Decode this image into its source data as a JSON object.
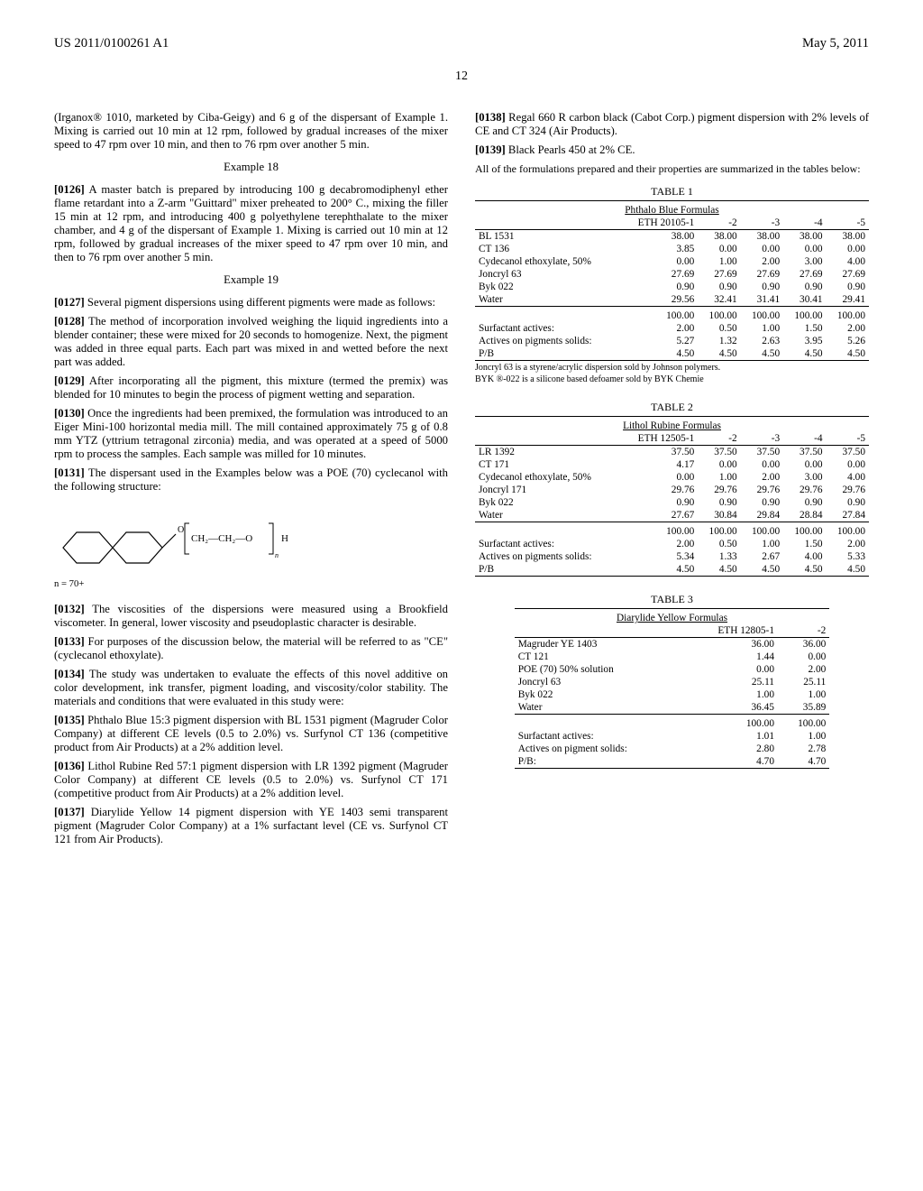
{
  "header": {
    "patent_no": "US 2011/0100261 A1",
    "date": "May 5, 2011",
    "page": "12"
  },
  "left_col": {
    "p1": "(Irganox® 1010, marketed by Ciba-Geigy) and 6 g of the dispersant of Example 1. Mixing is carried out 10 min at 12 rpm, followed by gradual increases of the mixer speed to 47 rpm over 10 min, and then to 76 rpm over another 5 min.",
    "ex18_title": "Example 18",
    "ex18_num": "[0126]",
    "ex18_text": " A master batch is prepared by introducing 100 g decabromodiphenyl ether flame retardant into a Z-arm \"Guittard\" mixer preheated to 200° C., mixing the filler 15 min at 12 rpm, and introducing 400 g polyethylene terephthalate to the mixer chamber, and 4 g of the dispersant of Example 1. Mixing is carried out 10 min at 12 rpm, followed by gradual increases of the mixer speed to 47 rpm over 10 min, and then to 76 rpm over another 5 min.",
    "ex19_title": "Example 19",
    "p0127_num": "[0127]",
    "p0127": " Several pigment dispersions using different pigments were made as follows:",
    "p0128_num": "[0128]",
    "p0128": " The method of incorporation involved weighing the liquid ingredients into a blender container; these were mixed for 20 seconds to homogenize. Next, the pigment was added in three equal parts. Each part was mixed in and wetted before the next part was added.",
    "p0129_num": "[0129]",
    "p0129": " After incorporating all the pigment, this mixture (termed the premix) was blended for 10 minutes to begin the process of pigment wetting and separation.",
    "p0130_num": "[0130]",
    "p0130": " Once the ingredients had been premixed, the formulation was introduced to an Eiger Mini-100 horizontal media mill. The mill contained approximately 75 g of 0.8 mm YTZ (yttrium tetragonal zirconia) media, and was operated at a speed of 5000 rpm to process the samples. Each sample was milled for 10 minutes.",
    "p0131_num": "[0131]",
    "p0131": " The dispersant used in the Examples below was a POE (70) cyclecanol with the following structure:",
    "chain_formula": "CH₂—CH₂—O",
    "chain_suffix": "H",
    "sub_n": "n",
    "n_note": "n = 70+",
    "p0132_num": "[0132]",
    "p0132": " The viscosities of the dispersions were measured using a Brookfield viscometer. In general, lower viscosity and pseudoplastic character is desirable.",
    "p0133_num": "[0133]",
    "p0133": " For purposes of the discussion below, the material will be referred to as \"CE\" (cyclecanol ethoxylate).",
    "p0134_num": "[0134]",
    "p0134": " The study was undertaken to evaluate the effects of this novel additive on color development, ink transfer, pigment loading, and viscosity/color stability. The materials and conditions that were evaluated in this study were:",
    "p0135_num": "[0135]",
    "p0135": " Phthalo Blue 15:3 pigment dispersion with BL 1531 pigment (Magruder Color Company) at different CE levels (0.5 to 2.0%) vs. Surfynol CT 136 (competitive product from Air Products) at a 2% addition level.",
    "p0136_num": "[0136]",
    "p0136": " Lithol Rubine Red 57:1 pigment dispersion with LR 1392 pigment (Magruder Color Company) at different CE levels (0.5 to 2.0%) vs. Surfynol CT 171 (competitive product from Air Products) at a 2% addition level.",
    "p0137_num": "[0137]",
    "p0137": " Diarylide Yellow 14 pigment dispersion with YE 1403 semi transparent pigment (Magruder Color Company) at a 1% surfactant level (CE vs. Surfynol CT 121 from Air Products)."
  },
  "right_col": {
    "p0138_num": "[0138]",
    "p0138": " Regal 660 R carbon black (Cabot Corp.) pigment dispersion with 2% levels of CE and CT 324 (Air Products).",
    "p0139_num": "[0139]",
    "p0139": " Black Pearls 450 at 2% CE.",
    "intro_line": "All of the formulations prepared and their properties are summarized in the tables below:"
  },
  "table1": {
    "caption": "TABLE 1",
    "subtitle": "Phthalo Blue Formulas",
    "cols": [
      "",
      "ETH 20105-1",
      "-2",
      "-3",
      "-4",
      "-5"
    ],
    "rows": [
      [
        "BL 1531",
        "38.00",
        "38.00",
        "38.00",
        "38.00",
        "38.00"
      ],
      [
        "CT 136",
        "3.85",
        "0.00",
        "0.00",
        "0.00",
        "0.00"
      ],
      [
        "Cydecanol ethoxylate, 50%",
        "0.00",
        "1.00",
        "2.00",
        "3.00",
        "4.00"
      ],
      [
        "Joncryl 63",
        "27.69",
        "27.69",
        "27.69",
        "27.69",
        "27.69"
      ],
      [
        "Byk 022",
        "0.90",
        "0.90",
        "0.90",
        "0.90",
        "0.90"
      ],
      [
        "Water",
        "29.56",
        "32.41",
        "31.41",
        "30.41",
        "29.41"
      ]
    ],
    "totals": [
      "",
      "100.00",
      "100.00",
      "100.00",
      "100.00",
      "100.00"
    ],
    "extras": [
      [
        "Surfactant actives:",
        "2.00",
        "0.50",
        "1.00",
        "1.50",
        "2.00"
      ],
      [
        "Actives on pigments solids:",
        "5.27",
        "1.32",
        "2.63",
        "3.95",
        "5.26"
      ],
      [
        "P/B",
        "4.50",
        "4.50",
        "4.50",
        "4.50",
        "4.50"
      ]
    ],
    "footnotes": [
      "Joncryl 63 is a styrene/acrylic dispersion sold by Johnson polymers.",
      "BYK ®-022 is a silicone based defoamer sold by BYK Chemie"
    ]
  },
  "table2": {
    "caption": "TABLE 2",
    "subtitle": "Lithol Rubine Formulas",
    "cols": [
      "",
      "ETH 12505-1",
      "-2",
      "-3",
      "-4",
      "-5"
    ],
    "rows": [
      [
        "LR 1392",
        "37.50",
        "37.50",
        "37.50",
        "37.50",
        "37.50"
      ],
      [
        "CT 171",
        "4.17",
        "0.00",
        "0.00",
        "0.00",
        "0.00"
      ],
      [
        "Cydecanol ethoxylate, 50%",
        "0.00",
        "1.00",
        "2.00",
        "3.00",
        "4.00"
      ],
      [
        "Joncryl 171",
        "29.76",
        "29.76",
        "29.76",
        "29.76",
        "29.76"
      ],
      [
        "Byk 022",
        "0.90",
        "0.90",
        "0.90",
        "0.90",
        "0.90"
      ],
      [
        "Water",
        "27.67",
        "30.84",
        "29.84",
        "28.84",
        "27.84"
      ]
    ],
    "totals": [
      "",
      "100.00",
      "100.00",
      "100.00",
      "100.00",
      "100.00"
    ],
    "extras": [
      [
        "Surfactant actives:",
        "2.00",
        "0.50",
        "1.00",
        "1.50",
        "2.00"
      ],
      [
        "Actives on pigments solids:",
        "5.34",
        "1.33",
        "2.67",
        "4.00",
        "5.33"
      ],
      [
        "P/B",
        "4.50",
        "4.50",
        "4.50",
        "4.50",
        "4.50"
      ]
    ]
  },
  "table3": {
    "caption": "TABLE 3",
    "subtitle": "Diarylide Yellow Formulas",
    "cols": [
      "",
      "ETH 12805-1",
      "-2"
    ],
    "rows": [
      [
        "Magruder YE 1403",
        "36.00",
        "36.00"
      ],
      [
        "CT 121",
        "1.44",
        "0.00"
      ],
      [
        "POE (70) 50% solution",
        "0.00",
        "2.00"
      ],
      [
        "Joncryl 63",
        "25.11",
        "25.11"
      ],
      [
        "Byk 022",
        "1.00",
        "1.00"
      ],
      [
        "Water",
        "36.45",
        "35.89"
      ]
    ],
    "totals": [
      "",
      "100.00",
      "100.00"
    ],
    "extras": [
      [
        "Surfactant actives:",
        "1.01",
        "1.00"
      ],
      [
        "Actives on pigment solids:",
        "2.80",
        "2.78"
      ],
      [
        "P/B:",
        "4.70",
        "4.70"
      ]
    ]
  }
}
